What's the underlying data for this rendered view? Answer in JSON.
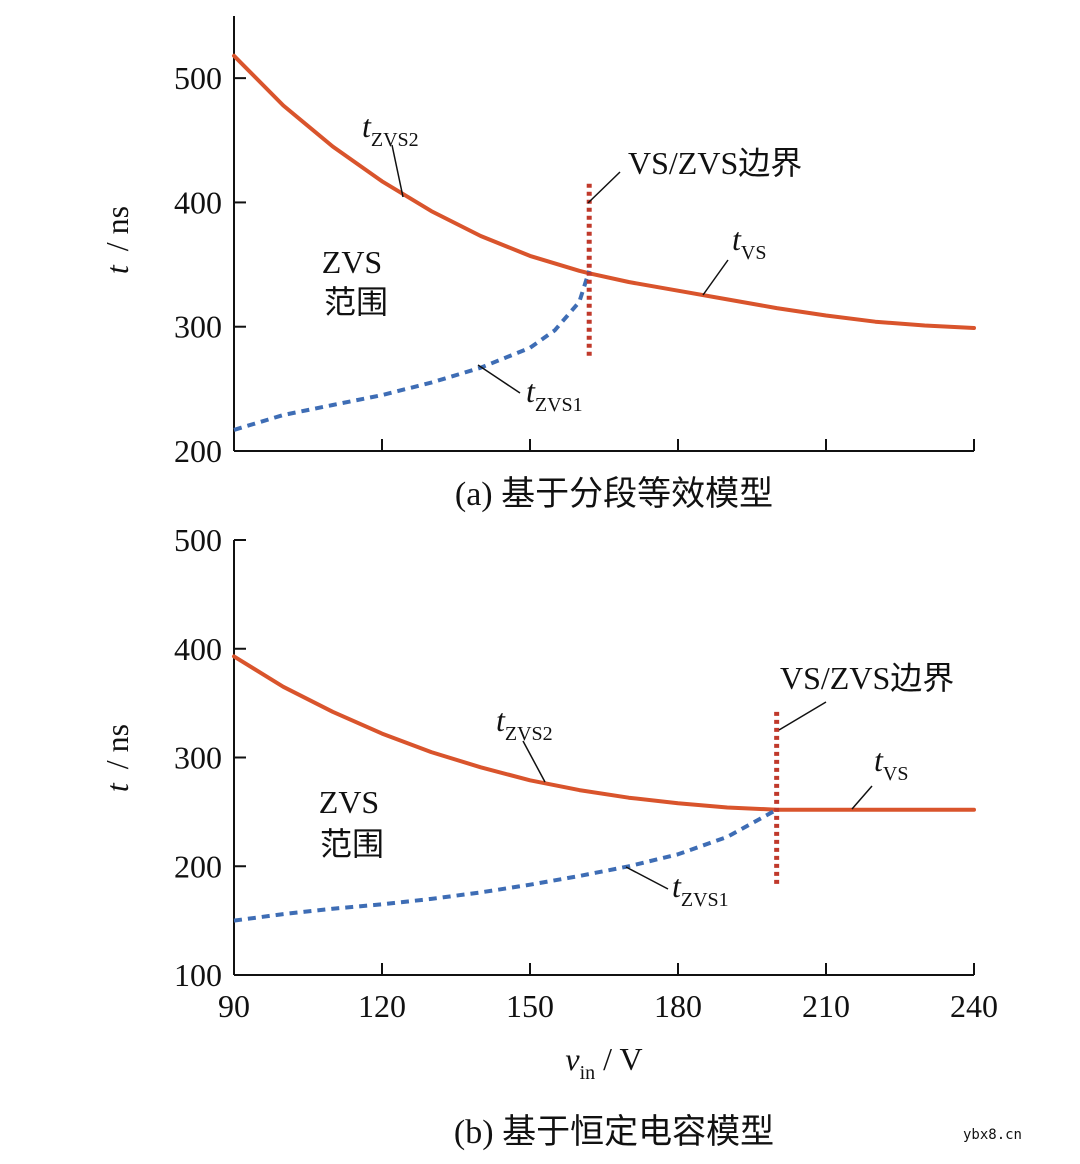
{
  "colors": {
    "solid": "#d9542c",
    "dashed": "#3e6db5",
    "boundary": "#c0392b",
    "axis": "#111111"
  },
  "watermark": "ybx8.cn",
  "chart_data": [
    {
      "type": "line",
      "caption": "(a) 基于分段等效模型",
      "ylabel_var": "t",
      "ylabel_unit": "/ ns",
      "xlim": [
        90,
        240
      ],
      "ylim": [
        200,
        550
      ],
      "yticks": [
        200,
        300,
        400,
        500
      ],
      "xticks": [
        90,
        120,
        150,
        180,
        210,
        240
      ],
      "show_xtick_labels": false,
      "series": [
        {
          "name": "t_ZVS2 / t_VS",
          "style": "solid",
          "x": [
            90,
            100,
            110,
            120,
            130,
            140,
            150,
            160,
            162,
            170,
            180,
            190,
            200,
            210,
            220,
            230,
            240
          ],
          "y": [
            518,
            478,
            445,
            417,
            393,
            373,
            357,
            345,
            343,
            336,
            329,
            322,
            315,
            309,
            304,
            301,
            299
          ]
        },
        {
          "name": "t_ZVS1",
          "style": "dashed",
          "x": [
            90,
            100,
            110,
            120,
            130,
            140,
            150,
            155,
            160,
            162
          ],
          "y": [
            217,
            229,
            237,
            245,
            255,
            267,
            283,
            297,
            320,
            345
          ]
        }
      ],
      "boundary": {
        "x": 162,
        "y_range": [
          276,
          415
        ],
        "label": "VS/ZVS边界"
      },
      "region_label": [
        "ZVS",
        "范围"
      ],
      "annotations": [
        {
          "main": "t",
          "sub": "ZVS2"
        },
        {
          "main": "t",
          "sub": "VS"
        },
        {
          "main": "t",
          "sub": "ZVS1"
        }
      ]
    },
    {
      "type": "line",
      "caption": "(b) 基于恒定电容模型",
      "ylabel_var": "t",
      "ylabel_unit": "/ ns",
      "xlim": [
        90,
        240
      ],
      "ylim": [
        100,
        500
      ],
      "yticks": [
        100,
        200,
        300,
        400,
        500
      ],
      "xticks": [
        90,
        120,
        150,
        180,
        210,
        240
      ],
      "xtick_labels": [
        "90",
        "120",
        "150",
        "180",
        "210",
        "240"
      ],
      "xlabel_var": "v",
      "xlabel_sub": "in",
      "xlabel_unit": "/ V",
      "series": [
        {
          "name": "t_ZVS2 / t_VS",
          "style": "solid",
          "x": [
            90,
            100,
            110,
            120,
            130,
            140,
            150,
            160,
            170,
            180,
            190,
            200,
            210,
            220,
            230,
            240
          ],
          "y": [
            393,
            365,
            342,
            322,
            305,
            291,
            279,
            270,
            263,
            258,
            254,
            252,
            252,
            252,
            252,
            252
          ]
        },
        {
          "name": "t_ZVS1",
          "style": "dashed",
          "x": [
            90,
            100,
            110,
            120,
            130,
            140,
            150,
            160,
            170,
            180,
            190,
            200
          ],
          "y": [
            150,
            156,
            161,
            165,
            170,
            176,
            183,
            191,
            200,
            211,
            227,
            252
          ]
        }
      ],
      "boundary": {
        "x": 200,
        "y_range": [
          183,
          342
        ],
        "label": "VS/ZVS边界"
      },
      "region_label": [
        "ZVS",
        "范围"
      ],
      "annotations": [
        {
          "main": "t",
          "sub": "ZVS2"
        },
        {
          "main": "t",
          "sub": "VS"
        },
        {
          "main": "t",
          "sub": "ZVS1"
        }
      ]
    }
  ]
}
